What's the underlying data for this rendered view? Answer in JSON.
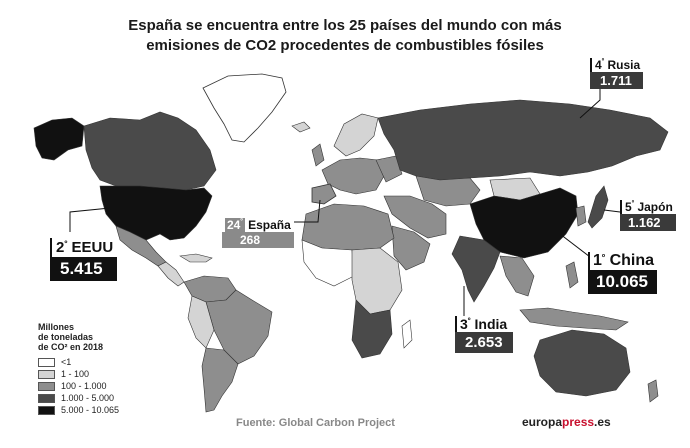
{
  "title": {
    "line1": "España se encuentra entre los 25 países del mundo con más",
    "line2": "emisiones de CO2 procedentes de combustibles fósiles"
  },
  "callouts": {
    "eeuu": {
      "rank": "2",
      "ordinal": "º",
      "name": "EEUU",
      "value": "5.415"
    },
    "espana": {
      "rank": "24",
      "ordinal": "º",
      "name": "España",
      "value": "268"
    },
    "russia": {
      "rank": "4",
      "ordinal": "º",
      "name": "Rusia",
      "value": "1.711"
    },
    "japon": {
      "rank": "5",
      "ordinal": "º",
      "name": "Japón",
      "value": "1.162"
    },
    "china": {
      "rank": "1",
      "ordinal": "º",
      "name": "China",
      "value": "10.065"
    },
    "india": {
      "rank": "3",
      "ordinal": "º",
      "name": "India",
      "value": "2.653"
    }
  },
  "legend": {
    "header_line1": "Millones",
    "header_line2": "de toneladas",
    "header_line3": "de CO² en 2018",
    "items": [
      {
        "label": "<1",
        "color": "#ffffff"
      },
      {
        "label": "1 - 100",
        "color": "#d4d4d4"
      },
      {
        "label": "100 - 1.000",
        "color": "#8e8e8e"
      },
      {
        "label": "1.000 - 5.000",
        "color": "#4a4a4a"
      },
      {
        "label": "5.000 - 10.065",
        "color": "#111111"
      }
    ]
  },
  "footer": {
    "source": "Fuente: Global Carbon Project",
    "brand_left": "europa",
    "brand_mid": "press",
    "brand_right": ".es"
  }
}
